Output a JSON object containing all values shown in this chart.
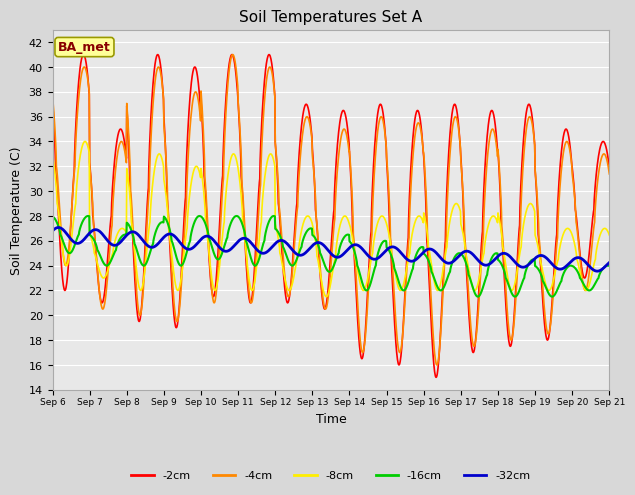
{
  "title": "Soil Temperatures Set A",
  "xlabel": "Time",
  "ylabel": "Soil Temperature (C)",
  "ylim": [
    14,
    43
  ],
  "background_color": "#d8d8d8",
  "plot_bg_color": "#e8e8e8",
  "grid_color": "white",
  "series": {
    "-2cm": {
      "color": "#ff0000",
      "lw": 1.2
    },
    "-4cm": {
      "color": "#ff8800",
      "lw": 1.2
    },
    "-8cm": {
      "color": "#ffee00",
      "lw": 1.2
    },
    "-16cm": {
      "color": "#00cc00",
      "lw": 1.5
    },
    "-32cm": {
      "color": "#0000cc",
      "lw": 2.0
    }
  },
  "label_box": {
    "text": "BA_met",
    "bg": "#ffff99",
    "edge": "#999900",
    "text_color": "#880000",
    "fontsize": 9,
    "fontweight": "bold"
  },
  "x_tick_labels": [
    "Sep 6",
    "Sep 7",
    "Sep 8",
    "Sep 9",
    "Sep 10",
    "Sep 11",
    "Sep 12",
    "Sep 13",
    "Sep 14",
    "Sep 15",
    "Sep 16",
    "Sep 17",
    "Sep 18",
    "Sep 19",
    "Sep 20",
    "Sep 21"
  ],
  "legend_labels": [
    "-2cm",
    "-4cm",
    "-8cm",
    "-16cm",
    "-32cm"
  ],
  "legend_colors": [
    "#ff0000",
    "#ff8800",
    "#ffee00",
    "#00cc00",
    "#0000cc"
  ]
}
